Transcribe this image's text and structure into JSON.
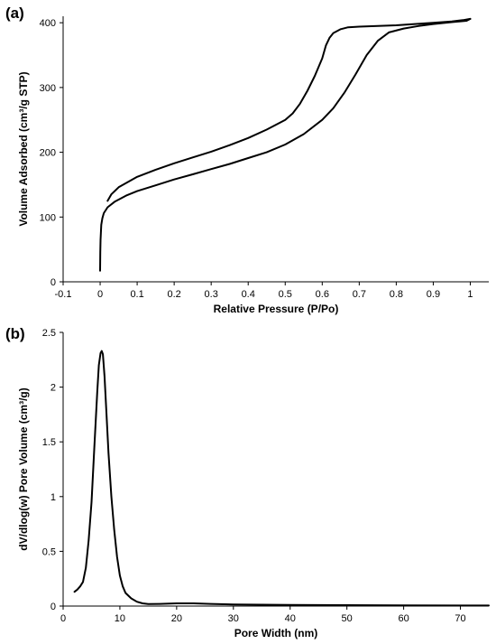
{
  "chart_data": [
    {
      "panel": "(a)",
      "type": "line",
      "xlabel": "Relative Pressure (P/Po)",
      "ylabel": "Volume Adsorbed (cm³/g STP)",
      "xlim": [
        -0.1,
        1.05
      ],
      "ylim": [
        0,
        410
      ],
      "xticks": [
        "-0.1",
        "0",
        "0.1",
        "0.2",
        "0.3",
        "0.4",
        "0.5",
        "0.6",
        "0.7",
        "0.8",
        "0.9",
        "1"
      ],
      "xtick_values": [
        -0.1,
        0,
        0.1,
        0.2,
        0.3,
        0.4,
        0.5,
        0.6,
        0.7,
        0.8,
        0.9,
        1.0
      ],
      "yticks": [
        "0",
        "100",
        "200",
        "300",
        "400"
      ],
      "ytick_values": [
        0,
        100,
        200,
        300,
        400
      ],
      "grid": false,
      "series": [
        {
          "role": "adsorption",
          "x": [
            0.0,
            0.0005,
            0.001,
            0.003,
            0.006,
            0.01,
            0.02,
            0.04,
            0.07,
            0.1,
            0.15,
            0.2,
            0.25,
            0.3,
            0.35,
            0.4,
            0.45,
            0.5,
            0.55,
            0.6,
            0.63,
            0.66,
            0.69,
            0.72,
            0.75,
            0.78,
            0.82,
            0.86,
            0.9,
            0.95,
            0.99,
            1.0
          ],
          "y": [
            17,
            45,
            65,
            88,
            98,
            106,
            115,
            124,
            133,
            140,
            149,
            158,
            166,
            174,
            182,
            191,
            200,
            212,
            228,
            250,
            268,
            292,
            320,
            350,
            372,
            385,
            391,
            395,
            398,
            401,
            403,
            406
          ]
        },
        {
          "role": "desorption",
          "x": [
            1.0,
            0.98,
            0.95,
            0.9,
            0.85,
            0.8,
            0.75,
            0.7,
            0.67,
            0.65,
            0.63,
            0.62,
            0.61,
            0.6,
            0.58,
            0.56,
            0.54,
            0.52,
            0.5,
            0.45,
            0.4,
            0.35,
            0.3,
            0.25,
            0.2,
            0.15,
            0.1,
            0.05,
            0.03,
            0.02
          ],
          "y": [
            406,
            404,
            402,
            400,
            398,
            396,
            395,
            394,
            393,
            390,
            384,
            377,
            365,
            345,
            318,
            295,
            275,
            260,
            250,
            235,
            222,
            211,
            201,
            192,
            183,
            173,
            162,
            146,
            135,
            125
          ]
        }
      ]
    },
    {
      "panel": "(b)",
      "type": "line",
      "xlabel": "Pore Width (nm)",
      "ylabel": "dV/dlog(w) Pore Volume (cm³/g)",
      "xlim": [
        0,
        75
      ],
      "ylim": [
        0,
        2.5
      ],
      "xticks": [
        "0",
        "10",
        "20",
        "30",
        "40",
        "50",
        "60",
        "70"
      ],
      "xtick_values": [
        0,
        10,
        20,
        30,
        40,
        50,
        60,
        70
      ],
      "yticks": [
        "0",
        "0.5",
        "1",
        "1.5",
        "2",
        "2.5"
      ],
      "ytick_values": [
        0,
        0.5,
        1.0,
        1.5,
        2.0,
        2.5
      ],
      "grid": false,
      "series": [
        {
          "x": [
            2.0,
            2.5,
            3.0,
            3.5,
            4.0,
            4.5,
            5.0,
            5.5,
            6.0,
            6.3,
            6.6,
            6.8,
            7.0,
            7.3,
            7.6,
            8.0,
            8.5,
            9.0,
            9.5,
            10.0,
            10.5,
            11.0,
            12.0,
            13.0,
            14.0,
            15.0,
            17.0,
            20.0,
            23.0,
            26.0,
            30.0,
            40.0,
            50.0,
            60.0,
            70.0,
            75.0
          ],
          "y": [
            0.13,
            0.15,
            0.18,
            0.22,
            0.35,
            0.6,
            0.95,
            1.45,
            1.95,
            2.2,
            2.31,
            2.33,
            2.3,
            2.1,
            1.8,
            1.4,
            1.0,
            0.7,
            0.45,
            0.28,
            0.18,
            0.12,
            0.07,
            0.04,
            0.025,
            0.018,
            0.02,
            0.025,
            0.025,
            0.02,
            0.015,
            0.01,
            0.008,
            0.006,
            0.005,
            0.005
          ]
        }
      ]
    }
  ]
}
